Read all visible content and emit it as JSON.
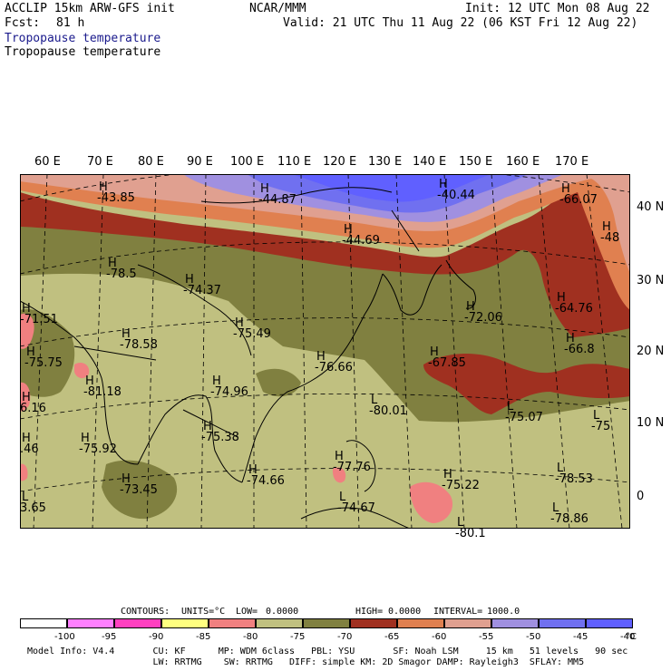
{
  "header": {
    "model_title": "ACCLIP 15km ARW-GFS init",
    "forecast_label": "Fcst:",
    "forecast_hours": "81 h",
    "center": "NCAR/MMM",
    "init_time": "Init: 12 UTC Mon 08 Aug 22",
    "valid_time": "Valid: 21 UTC Thu 11 Aug 22 (06 KST Fri 12 Aug 22)",
    "field_title_1": "Tropopause temperature",
    "field_title_2": "Tropopause temperature"
  },
  "map": {
    "lon_labels": [
      "60 E",
      "70 E",
      "80 E",
      "90 E",
      "100 E",
      "110 E",
      "120 E",
      "130 E",
      "140 E",
      "150 E",
      "160 E",
      "170 E"
    ],
    "lat_labels": [
      "40 N",
      "30 N",
      "20 N",
      "10 N",
      "0"
    ],
    "colors": {
      "lt_minus95": "#ffffff",
      "m95_m90": "#ff80ff",
      "m90_m85": "#ff40c0",
      "m85_m80": "#ffff80",
      "m80_m75": "#f08080",
      "m75_m70": "#c0c080",
      "m70_m65": "#808040",
      "m65_m60": "#a03020",
      "m60_m55": "#e08050",
      "m55_m50": "#e0a090",
      "m50_m45": "#a090e0",
      "m45_m40": "#7070f0",
      "gt_m40": "#6060ff",
      "coast": "#000000",
      "grid": "#000000"
    },
    "highs_lows": [
      {
        "mark": "H",
        "value": "-43.85"
      },
      {
        "mark": "H",
        "value": "-44.87"
      },
      {
        "mark": "H",
        "value": "-40.44"
      },
      {
        "mark": "H",
        "value": "-66.07"
      },
      {
        "mark": "H",
        "value": "-44.69"
      },
      {
        "mark": "H",
        "value": "-48"
      },
      {
        "mark": "H",
        "value": "-78.5"
      },
      {
        "mark": "H",
        "value": "-74.37"
      },
      {
        "mark": "H",
        "value": "-71.51"
      },
      {
        "mark": "H",
        "value": "-64.76"
      },
      {
        "mark": "H",
        "value": "-72.06"
      },
      {
        "mark": "H",
        "value": "-78.58"
      },
      {
        "mark": "H",
        "value": "-75.49"
      },
      {
        "mark": "H",
        "value": "-66.8"
      },
      {
        "mark": "H",
        "value": "-75.75"
      },
      {
        "mark": "H",
        "value": "-76.66"
      },
      {
        "mark": "H",
        "value": "-67.85"
      },
      {
        "mark": "H",
        "value": "-81.18"
      },
      {
        "mark": "H",
        "value": "-74.96"
      },
      {
        "mark": "L",
        "value": "-80.01"
      },
      {
        "mark": "L",
        "value": "-75.07"
      },
      {
        "mark": "H",
        "value": "6.16"
      },
      {
        "mark": "L",
        "value": "-75"
      },
      {
        "mark": "H",
        "value": "-75.38"
      },
      {
        "mark": "H",
        "value": ".46"
      },
      {
        "mark": "H",
        "value": "-75.92"
      },
      {
        "mark": "H",
        "value": "-77.76"
      },
      {
        "mark": "L",
        "value": "-78.53"
      },
      {
        "mark": "H",
        "value": "-74.66"
      },
      {
        "mark": "H",
        "value": "-73.45"
      },
      {
        "mark": "H",
        "value": "-75.22"
      },
      {
        "mark": "L",
        "value": "-74.67"
      },
      {
        "mark": "L",
        "value": "3.65"
      },
      {
        "mark": "L",
        "value": "-78.86"
      },
      {
        "mark": "L",
        "value": "-80.1"
      }
    ]
  },
  "contours_line": {
    "label": "CONTOURS:",
    "units": "UNITS=°C",
    "low": "LOW=",
    "low_val": "0.0000",
    "high": "HIGH=",
    "high_val": "0.0000",
    "interval": "INTERVAL=",
    "interval_val": "1000.0"
  },
  "colorbar": {
    "labels": [
      "-100",
      "-95",
      "-90",
      "-85",
      "-80",
      "-75",
      "-70",
      "-65",
      "-60",
      "-55",
      "-50",
      "-45",
      "-40"
    ],
    "unit": "°C",
    "colors": [
      "#ffffff",
      "#ff80ff",
      "#ff40c0",
      "#ffff80",
      "#f08080",
      "#c0c080",
      "#808040",
      "#a03020",
      "#e08050",
      "#e0a090",
      "#a090e0",
      "#7070f0",
      "#6060ff"
    ]
  },
  "footer": {
    "line1": "Model Info: V4.4       CU: KF      MP: WDM 6class   PBL: YSU       SF: Noah LSM     15 km   51 levels   90 sec",
    "line2": "                       LW: RRTMG    SW: RRTMG   DIFF: simple KM: 2D Smagor DAMP: Rayleigh3  SFLAY: MM5"
  }
}
